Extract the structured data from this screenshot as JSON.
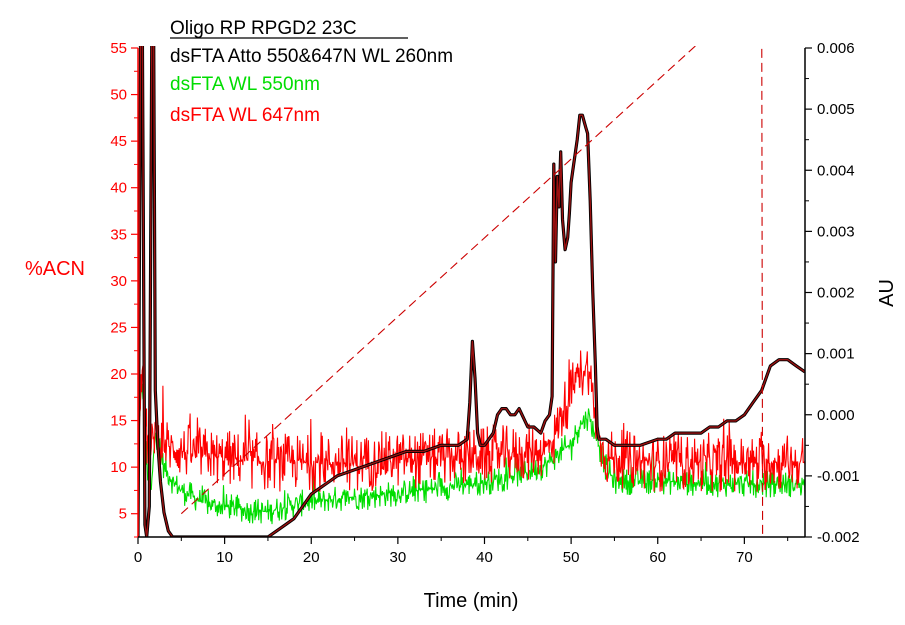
{
  "chart_data": {
    "type": "line",
    "legend": {
      "heading": "Oligo RP RPGD2 23C",
      "placement": "top-left",
      "entries": [
        {
          "label": "dsFTA Atto 550&647N WL 260nm",
          "color": "#000000"
        },
        {
          "label": "dsFTA WL 550nm",
          "color": "#00dd00"
        },
        {
          "label": "dsFTA WL 647nm",
          "color": "#ff0000"
        }
      ]
    },
    "xlabel": "Time (min)",
    "ylabel_left": "%ACN",
    "ylabel_right": "AU",
    "xlim": [
      0,
      77
    ],
    "ylim_left": [
      2.5,
      55
    ],
    "ylim_right": [
      -0.002,
      0.006
    ],
    "x_ticks": [
      "0",
      "10",
      "20",
      "30",
      "40",
      "50",
      "60",
      "70"
    ],
    "y_left_ticks": [
      "5",
      "10",
      "15",
      "20",
      "25",
      "30",
      "35",
      "40",
      "45",
      "50",
      "55"
    ],
    "y_right_ticks": [
      "-0.002",
      "-0.001",
      "0.000",
      "0.001",
      "0.002",
      "0.003",
      "0.004",
      "0.005",
      "0.006"
    ],
    "grid": false,
    "colors": {
      "left_axis": "#ff0000",
      "right_axis": "#000000",
      "gradient": "#cc0000"
    },
    "series": [
      {
        "name": "%ACN",
        "axis": "left",
        "style": "dashed",
        "color": "#cc0000",
        "x": [
          5,
          70,
          72,
          72.1,
          77
        ],
        "y": [
          5,
          60,
          60,
          2.5,
          2.5
        ]
      },
      {
        "name": "dsFTA Atto 550&647N WL 260nm",
        "axis": "right",
        "color": "#5a0000",
        "x": [
          0,
          0.3,
          0.5,
          0.8,
          1.0,
          1.3,
          1.6,
          1.8,
          2.0,
          2.3,
          2.6,
          3,
          3.5,
          4,
          4.5,
          5,
          5.5,
          6,
          7,
          8,
          10,
          12,
          14,
          15,
          16,
          17,
          18,
          19,
          20,
          21,
          22,
          23,
          25,
          27,
          29,
          31,
          33,
          35,
          37,
          38,
          38.3,
          38.6,
          38.9,
          39.2,
          39.5,
          40,
          41,
          41.5,
          42,
          42.5,
          43,
          43.5,
          44,
          45,
          45.7,
          46.5,
          47,
          47.5,
          47.8,
          48.0,
          48.2,
          48.4,
          48.6,
          48.8,
          49.0,
          49.3,
          49.6,
          49.8,
          50.0,
          50.3,
          50.7,
          51.0,
          51.3,
          51.5,
          51.7,
          51.9,
          52.2,
          52.5,
          52.8,
          53.0,
          53.2,
          53.5,
          54,
          55,
          57,
          58,
          60,
          61,
          62,
          63,
          64,
          65,
          66,
          67,
          68,
          69,
          70,
          71,
          72,
          73,
          74,
          75,
          76,
          77
        ],
        "y": [
          -0.002,
          0.0065,
          0.0065,
          -0.0018,
          -0.002,
          -0.0015,
          0.0065,
          0.0065,
          0.0004,
          -0.0005,
          -0.0011,
          -0.0016,
          -0.0019,
          -0.002,
          -0.002,
          -0.002,
          -0.002,
          -0.002,
          -0.002,
          -0.002,
          -0.002,
          -0.002,
          -0.002,
          -0.002,
          -0.0019,
          -0.0018,
          -0.0017,
          -0.0015,
          -0.0013,
          -0.0012,
          -0.0011,
          -0.001,
          -0.0009,
          -0.0008,
          -0.0007,
          -0.0006,
          -0.0006,
          -0.0005,
          -0.0005,
          -0.0004,
          0.0002,
          0.0012,
          0.0006,
          -0.0003,
          -0.0005,
          -0.0005,
          -0.0003,
          0.0,
          0.0001,
          0.0001,
          0.0,
          0.0,
          0.0001,
          -0.0002,
          -0.0002,
          -0.0003,
          -0.0001,
          0.0,
          0.0003,
          0.0041,
          0.0025,
          0.0039,
          0.0034,
          0.0043,
          0.0032,
          0.0027,
          0.0029,
          0.0033,
          0.0038,
          0.0041,
          0.0045,
          0.0049,
          0.0049,
          0.0048,
          0.0047,
          0.0046,
          0.0035,
          0.002,
          0.0008,
          -0.0002,
          -0.0004,
          -0.0004,
          -0.0004,
          -0.0005,
          -0.0005,
          -0.0005,
          -0.0004,
          -0.0004,
          -0.0003,
          -0.0003,
          -0.0003,
          -0.0003,
          -0.0002,
          -0.0002,
          -0.0001,
          -0.0001,
          0.0,
          0.0002,
          0.0004,
          0.0008,
          0.0009,
          0.0009,
          0.0008,
          0.0007
        ]
      },
      {
        "name": "dsFTA WL 550nm",
        "axis": "left",
        "color": "#00dd00",
        "noise": 1.5,
        "x": [
          0,
          0.5,
          1.0,
          1.5,
          2.0,
          2.5,
          3,
          4,
          5,
          6,
          8,
          10,
          12,
          14,
          15,
          16,
          18,
          20,
          22,
          25,
          30,
          35,
          40,
          45,
          47,
          48,
          50,
          51,
          52,
          53,
          54,
          55,
          60,
          65,
          70,
          75,
          77
        ],
        "y": [
          14,
          19,
          10,
          7,
          14,
          12,
          10,
          8.5,
          7.5,
          7,
          6,
          5.8,
          5.5,
          5.3,
          5.2,
          5.5,
          6,
          6.2,
          6.5,
          6.8,
          7.2,
          7.8,
          8.4,
          9.5,
          10.2,
          11,
          12.5,
          14.5,
          15.5,
          13,
          10,
          8.5,
          8.5,
          8.3,
          8.2,
          8.2,
          8.2
        ]
      },
      {
        "name": "dsFTA WL 647nm",
        "axis": "left",
        "color": "#ff0000",
        "noise": 3.2,
        "x": [
          0,
          0.5,
          1.0,
          1.5,
          2.0,
          2.5,
          3,
          4,
          6,
          10,
          15,
          20,
          25,
          30,
          35,
          40,
          45,
          47,
          48,
          49,
          50,
          51,
          52,
          53,
          54,
          60,
          65,
          70,
          75,
          77
        ],
        "y": [
          14,
          22,
          13,
          11,
          15,
          13,
          12.5,
          12,
          11.5,
          11,
          10.5,
          10.5,
          10.5,
          10.8,
          11,
          11.2,
          11.5,
          12,
          13,
          16,
          18,
          20,
          21,
          14,
          11,
          10.5,
          10.5,
          10.5,
          10.5,
          10.5
        ]
      }
    ]
  }
}
